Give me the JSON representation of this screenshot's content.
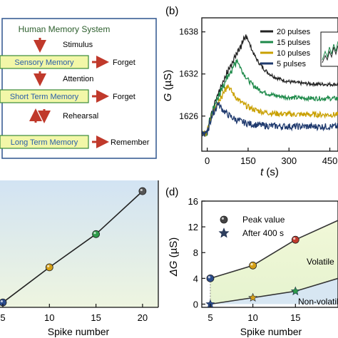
{
  "panel_a": {
    "title": "Human Memory System",
    "boxes": [
      "Sensory Memory",
      "Short Term Memory",
      "Long Term Memory"
    ],
    "steps": [
      "Stimulus",
      "Attention",
      "Rehearsal"
    ],
    "outcomes": [
      "Forget",
      "Forget",
      "Remember"
    ],
    "colors": {
      "frame": "#3b5f95",
      "box_fill": "#f2f7a8",
      "box_border": "#3a8a3a",
      "box_text": "#2a5ea8",
      "arrow": "#c0392b"
    }
  },
  "panel_b": {
    "label": "(b)"
  },
  "panel_d": {
    "label": "(d)"
  },
  "chart_data": [
    {
      "type": "line",
      "title": "",
      "xlabel": "t (s)",
      "ylabel": "G (µS)",
      "xlim": [
        -20,
        480
      ],
      "ylim": [
        1621,
        1640
      ],
      "x_ticks": [
        "0",
        "150",
        "300",
        "450"
      ],
      "y_ticks": [
        "1626",
        "1632",
        "1638"
      ],
      "legend_position": "top-right",
      "series": [
        {
          "name": "20 pulses",
          "color": "#222222",
          "peak_t": 145,
          "peak": 1637.5,
          "end": 1630.5
        },
        {
          "name": "15 pulses",
          "color": "#1e8a4a",
          "peak_t": 110,
          "peak": 1634.0,
          "end": 1628.5
        },
        {
          "name": "10 pulses",
          "color": "#c9a000",
          "peak_t": 75,
          "peak": 1630.5,
          "end": 1626.2
        },
        {
          "name": "5 pulses",
          "color": "#1f3a6e",
          "peak_t": 40,
          "peak": 1627.8,
          "end": 1624.5
        }
      ]
    },
    {
      "type": "line",
      "title": "",
      "xlabel": "Spike number",
      "ylabel": "",
      "xlim": [
        5,
        22
      ],
      "x_ticks": [
        "5",
        "10",
        "15",
        "20"
      ],
      "x": [
        5,
        10,
        15,
        20
      ],
      "series": [
        {
          "values": [
            0.5,
            4.1,
            7.5,
            11.9
          ]
        }
      ],
      "ylim": [
        0,
        13
      ]
    },
    {
      "type": "line",
      "title": "",
      "xlabel": "Spike number",
      "ylabel": "ΔG (µS)",
      "xlim": [
        4,
        20
      ],
      "ylim": [
        -0.5,
        16
      ],
      "x_ticks": [
        "5",
        "10",
        "15"
      ],
      "y_ticks": [
        "0",
        "4",
        "8",
        "12",
        "16"
      ],
      "x": [
        5,
        10,
        15,
        20
      ],
      "series": [
        {
          "name": "Peak value",
          "values": [
            4,
            6,
            10,
            13
          ]
        },
        {
          "name": "After 400 s",
          "values": [
            0,
            1,
            2,
            4
          ]
        }
      ],
      "regions": [
        "Volatile",
        "Non-volatile"
      ]
    }
  ]
}
